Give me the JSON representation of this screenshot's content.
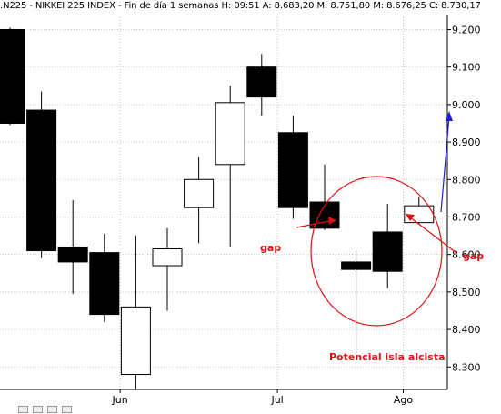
{
  "header": {
    "symbol": ".N225",
    "instrument": "NIKKEI 225 INDEX",
    "period": "Fin de día 1 semanas",
    "high": "H: 09:51",
    "a": "A: 8.683,20",
    "m": "M: 8.751,80",
    "m2": "M: 8.676,25",
    "c": "C: 8.730,17"
  },
  "colors": {
    "bear": "#000000",
    "bull": "#ffffff",
    "grid": "#c8c8c8",
    "annotation": "#dd1111",
    "arrow_blue": "#1f1fd6"
  },
  "chart_data": {
    "type": "candlestick",
    "title": "",
    "ylim": [
      8240,
      9240
    ],
    "y_ticks": [
      8300,
      8400,
      8500,
      8600,
      8700,
      8800,
      8900,
      9000,
      9100,
      9200
    ],
    "y_tick_labels": [
      "8.300",
      "8.400",
      "8.500",
      "8.600",
      "8.700",
      "8.800",
      "8.900",
      "9.000",
      "9.100",
      "9.200"
    ],
    "x_labels": [
      {
        "label": "Jun",
        "after_index": 3
      },
      {
        "label": "Jul",
        "after_index": 8
      },
      {
        "label": "Ago",
        "after_index": 12
      }
    ],
    "candles": [
      {
        "open": 9200,
        "high": 9205,
        "low": 8945,
        "close": 8950
      },
      {
        "open": 8985,
        "high": 9035,
        "low": 8590,
        "close": 8610
      },
      {
        "open": 8620,
        "high": 8745,
        "low": 8495,
        "close": 8580
      },
      {
        "open": 8605,
        "high": 8655,
        "low": 8420,
        "close": 8440
      },
      {
        "open": 8280,
        "high": 8650,
        "low": 8240,
        "close": 8460
      },
      {
        "open": 8570,
        "high": 8670,
        "low": 8450,
        "close": 8615
      },
      {
        "open": 8725,
        "high": 8860,
        "low": 8630,
        "close": 8800
      },
      {
        "open": 8840,
        "high": 9050,
        "low": 8620,
        "close": 9005
      },
      {
        "open": 9100,
        "high": 9135,
        "low": 8970,
        "close": 9020
      },
      {
        "open": 8925,
        "high": 8970,
        "low": 8695,
        "close": 8725
      },
      {
        "open": 8740,
        "high": 8840,
        "low": 8665,
        "close": 8670
      },
      {
        "open": 8580,
        "high": 8610,
        "low": 8325,
        "close": 8560
      },
      {
        "open": 8660,
        "high": 8735,
        "low": 8510,
        "close": 8555
      },
      {
        "open": 8685,
        "high": 8755,
        "low": 8680,
        "close": 8730
      }
    ],
    "annotations": [
      {
        "text": "gap"
      },
      {
        "text": "gap"
      },
      {
        "text": "Potencial isla alcista"
      }
    ]
  }
}
